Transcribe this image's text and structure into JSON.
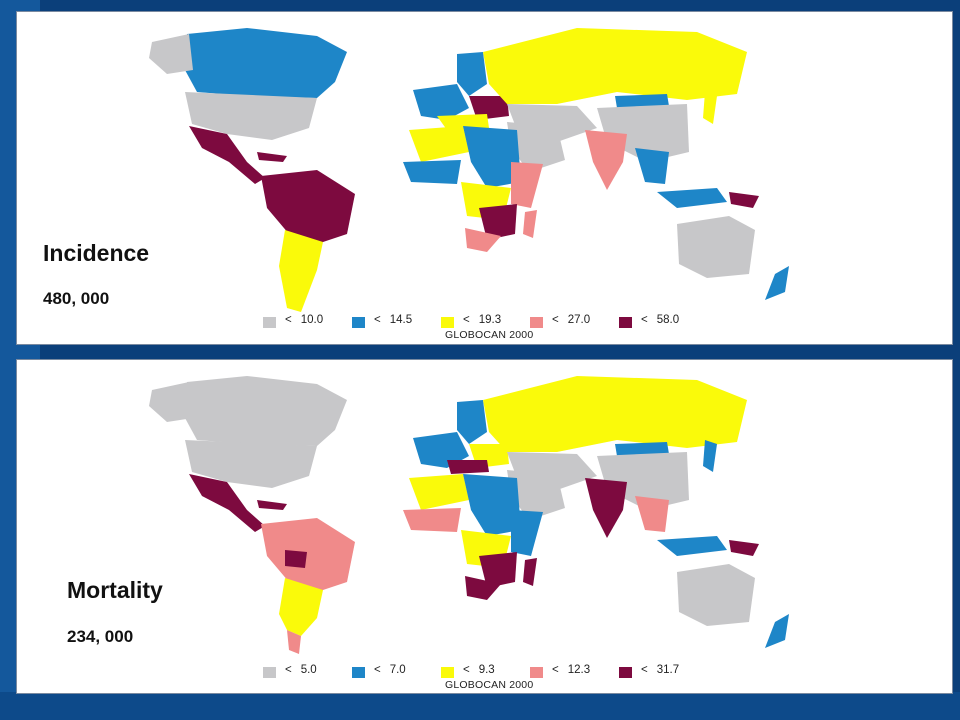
{
  "colors": {
    "gray": "#c7c7c9",
    "blue": "#1e86c8",
    "yellow": "#fafa0a",
    "pink": "#f08a8a",
    "maroon": "#7d0a3f",
    "background": "#0b3f7a"
  },
  "top_map": {
    "title": "Incidence",
    "value": "480, 000",
    "source": "GLOBOCAN 2000",
    "legend": [
      {
        "symbol": "<",
        "threshold": "10.0",
        "color": "#c7c7c9"
      },
      {
        "symbol": "<",
        "threshold": "14.5",
        "color": "#1e86c8"
      },
      {
        "symbol": "<",
        "threshold": "19.3",
        "color": "#fafa0a"
      },
      {
        "symbol": "<",
        "threshold": "27.0",
        "color": "#f08a8a"
      },
      {
        "symbol": "<",
        "threshold": "58.0",
        "color": "#7d0a3f"
      }
    ]
  },
  "bottom_map": {
    "title": "Mortality",
    "value": "234, 000",
    "source": "GLOBOCAN 2000",
    "legend": [
      {
        "symbol": "<",
        "threshold": "5.0",
        "color": "#c7c7c9"
      },
      {
        "symbol": "<",
        "threshold": "7.0",
        "color": "#1e86c8"
      },
      {
        "symbol": "<",
        "threshold": "9.3",
        "color": "#fafa0a"
      },
      {
        "symbol": "<",
        "threshold": "12.3",
        "color": "#f08a8a"
      },
      {
        "symbol": "<",
        "threshold": "31.7",
        "color": "#7d0a3f"
      }
    ]
  }
}
